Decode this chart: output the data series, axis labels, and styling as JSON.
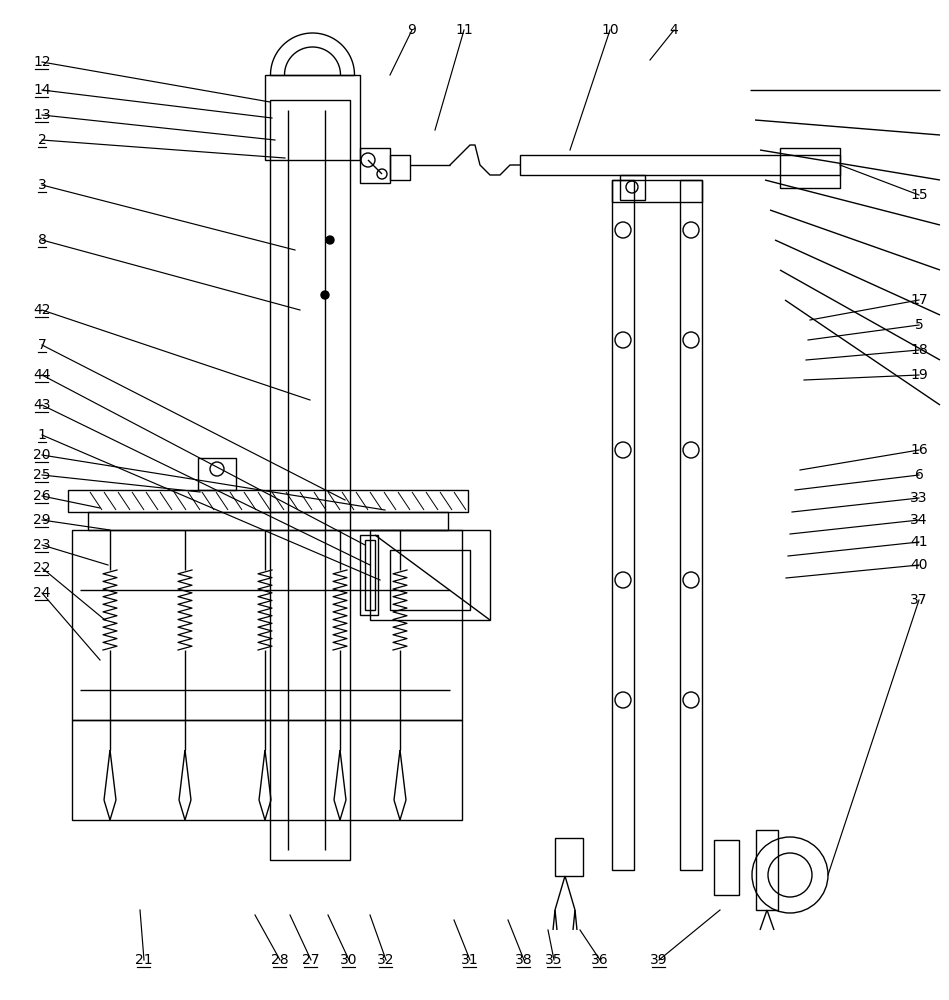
{
  "bg_color": "#ffffff",
  "line_color": "#000000",
  "lw": 1.0,
  "fig_width": 9.49,
  "fig_height": 10.0
}
